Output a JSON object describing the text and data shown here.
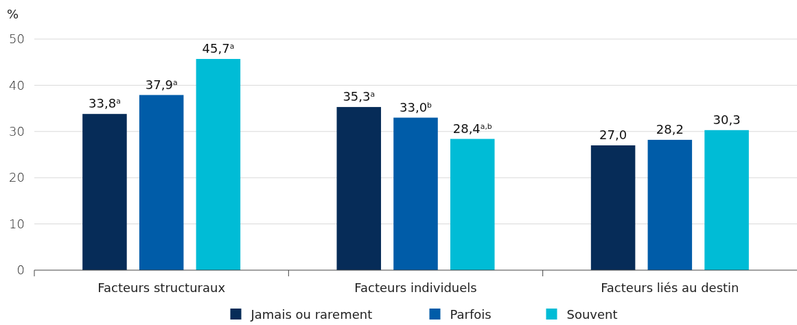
{
  "chart_data": {
    "type": "bar",
    "ylabel": "%",
    "categories": [
      "Facteurs structuraux",
      "Facteurs individuels",
      "Facteurs liés au destin"
    ],
    "series": [
      {
        "name": "Jamais ou rarement",
        "color": "#062c58",
        "values": [
          33.8,
          35.3,
          27.0
        ],
        "value_labels": [
          "33,8$^{a}$",
          "35,3$^{a}$",
          "27,0"
        ]
      },
      {
        "name": "Parfois",
        "color": "#005ca8",
        "values": [
          37.9,
          33.0,
          28.2
        ],
        "value_labels": [
          "37,9$^{a}$",
          "33,0$^{b}$",
          "28,2"
        ]
      },
      {
        "name": "Souvent",
        "color": "#00bcd6",
        "values": [
          45.7,
          28.4,
          30.3
        ],
        "value_labels": [
          "45,7$^{a}$",
          "28,4$^{a,b}$",
          "30,3"
        ]
      }
    ],
    "ylim": [
      0,
      50
    ],
    "yticks": [
      0,
      10,
      20,
      30,
      40,
      50
    ],
    "grid": "y",
    "legend": "bottom"
  }
}
